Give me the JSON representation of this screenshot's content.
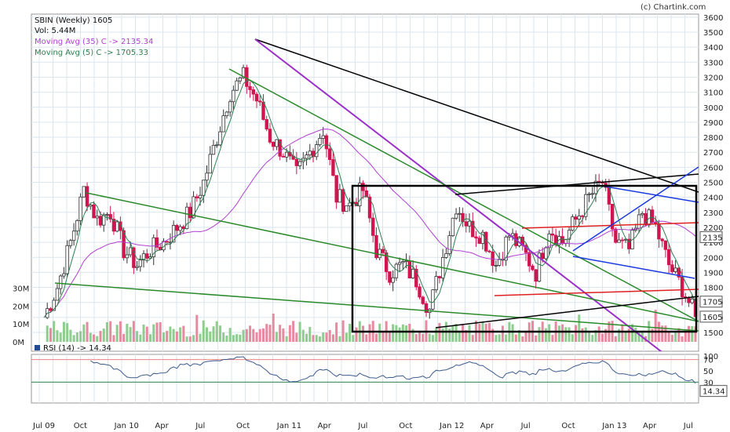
{
  "header": {
    "title": "SBIN (Weekly) 1605",
    "credit": "(c) Chartink.com",
    "vol": "Vol: 5.44M",
    "ma35": "Moving Avg (35) C -> 2135.34",
    "ma5": "Moving Avg (5) C -> 1705.33",
    "rsi": "RSI (14) -> 14.34"
  },
  "colors": {
    "up": "#8fcc8f",
    "down": "#d0154f",
    "ma35": "#b040d0",
    "ma5": "#2f7f4f",
    "grid": "#dbe6ef",
    "rsi_line": "#3b5b8b",
    "rsi_ob": "#f08080"
  },
  "chart_data": [
    {
      "type": "candlestick",
      "title": "SBIN (Weekly) 1605",
      "x_tick_labels": [
        "Jul 09",
        "Oct",
        "Jan 10",
        "Apr",
        "Jul",
        "Oct",
        "Jan 11",
        "Apr",
        "Jul",
        "Oct",
        "Jan 12",
        "Apr",
        "Jul",
        "Oct",
        "Jan 13",
        "Apr",
        "Jul"
      ],
      "y_tick_labels": [
        "1500",
        "1600",
        "1700",
        "1800",
        "1900",
        "2000",
        "2100",
        "2200",
        "2300",
        "2400",
        "2500",
        "2600",
        "2700",
        "2800",
        "2900",
        "3000",
        "3100",
        "3200",
        "3300",
        "3400",
        "3500",
        "3600"
      ],
      "ylim": [
        1500,
        3600
      ],
      "price_badges": [
        "2135",
        "1705",
        "1605"
      ],
      "close_series": [
        {
          "x": "Jul 09",
          "y": 1600
        },
        {
          "x": "Aug 09",
          "y": 1800
        },
        {
          "x": "Sep 09",
          "y": 2100
        },
        {
          "x": "Oct 09",
          "y": 2450
        },
        {
          "x": "Nov 09",
          "y": 2250
        },
        {
          "x": "Dec 09",
          "y": 2300
        },
        {
          "x": "Jan 10",
          "y": 2050
        },
        {
          "x": "Feb 10",
          "y": 1950
        },
        {
          "x": "Mar 10",
          "y": 2050
        },
        {
          "x": "Apr 10",
          "y": 2100
        },
        {
          "x": "May 10",
          "y": 2200
        },
        {
          "x": "Jun 10",
          "y": 2300
        },
        {
          "x": "Jul 10",
          "y": 2500
        },
        {
          "x": "Aug 10",
          "y": 2800
        },
        {
          "x": "Sep 10",
          "y": 3100
        },
        {
          "x": "Oct 10",
          "y": 3200
        },
        {
          "x": "Nov 10",
          "y": 3050
        },
        {
          "x": "Dec 10",
          "y": 2800
        },
        {
          "x": "Jan 11",
          "y": 2700
        },
        {
          "x": "Feb 11",
          "y": 2550
        },
        {
          "x": "Mar 11",
          "y": 2700
        },
        {
          "x": "Apr 11",
          "y": 2850
        },
        {
          "x": "May 11",
          "y": 2400
        },
        {
          "x": "Jun 11",
          "y": 2350
        },
        {
          "x": "Jul 11",
          "y": 2450
        },
        {
          "x": "Aug 11",
          "y": 2050
        },
        {
          "x": "Sep 11",
          "y": 1900
        },
        {
          "x": "Oct 11",
          "y": 1950
        },
        {
          "x": "Nov 11",
          "y": 1850
        },
        {
          "x": "Dec 11",
          "y": 1650
        },
        {
          "x": "Jan 12",
          "y": 2000
        },
        {
          "x": "Feb 12",
          "y": 2350
        },
        {
          "x": "Mar 12",
          "y": 2200
        },
        {
          "x": "Apr 12",
          "y": 2150
        },
        {
          "x": "May 12",
          "y": 1950
        },
        {
          "x": "Jun 12",
          "y": 2150
        },
        {
          "x": "Jul 12",
          "y": 2050
        },
        {
          "x": "Aug 12",
          "y": 1900
        },
        {
          "x": "Sep 12",
          "y": 2200
        },
        {
          "x": "Oct 12",
          "y": 2100
        },
        {
          "x": "Nov 12",
          "y": 2250
        },
        {
          "x": "Dec 12",
          "y": 2400
        },
        {
          "x": "Jan 13",
          "y": 2500
        },
        {
          "x": "Feb 13",
          "y": 2100
        },
        {
          "x": "Mar 13",
          "y": 2050
        },
        {
          "x": "Apr 13",
          "y": 2300
        },
        {
          "x": "May 13",
          "y": 2200
        },
        {
          "x": "Jun 13",
          "y": 1950
        },
        {
          "x": "Jul 13",
          "y": 1800
        },
        {
          "x": "Aug 13",
          "y": 1605
        }
      ]
    },
    {
      "type": "bar",
      "title": "Volume",
      "y_tick_labels": [
        "0M",
        "10M",
        "20M",
        "30M"
      ],
      "ylim": [
        0,
        35
      ]
    },
    {
      "type": "line",
      "title": "RSI (14) -> 14.34",
      "y_tick_labels": [
        "100",
        "70",
        "50",
        "30"
      ],
      "ylim": [
        0,
        100
      ],
      "last_value_label": "14.34"
    }
  ]
}
